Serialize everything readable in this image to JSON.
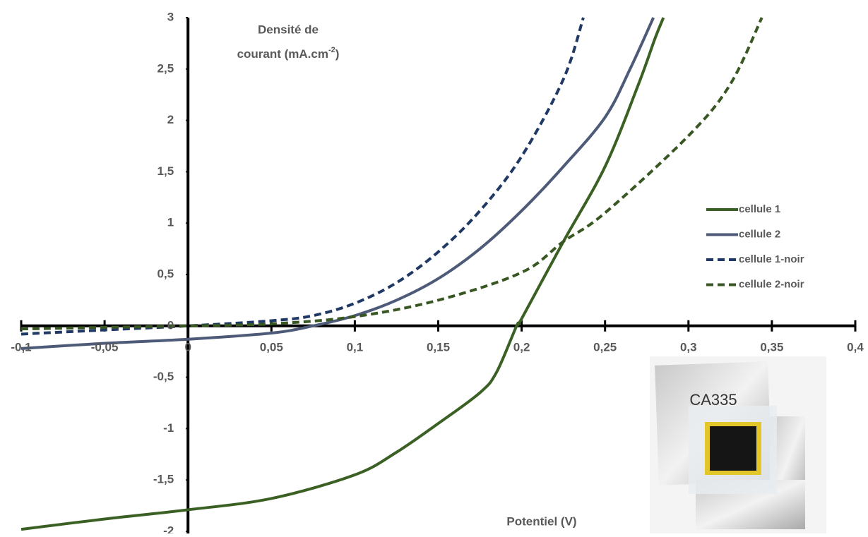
{
  "chart_data": {
    "type": "line",
    "y_label": {
      "line1": "Densité de",
      "line2": "courant (mA.cm",
      "sup": "-2",
      "end": ")"
    },
    "x_label": "Potentiel (V)",
    "xlim": [
      -0.1,
      0.4
    ],
    "ylim": [
      -2,
      3
    ],
    "xticks": [
      {
        "value": -0.1,
        "label": "-0,1"
      },
      {
        "value": -0.05,
        "label": "-0,05"
      },
      0,
      {
        "value": 0.05,
        "label": "0,05"
      },
      {
        "value": 0.1,
        "label": "0,1"
      },
      {
        "value": 0.15,
        "label": "0,15"
      },
      {
        "value": 0.2,
        "label": "0,2"
      },
      {
        "value": 0.25,
        "label": "0,25"
      },
      {
        "value": 0.3,
        "label": "0,3"
      },
      {
        "value": 0.35,
        "label": "0,35"
      },
      {
        "value": 0.4,
        "label": "0,4"
      }
    ],
    "yticks": [
      -2,
      {
        "value": -1.5,
        "label": "-1,5"
      },
      -1,
      {
        "value": -0.5,
        "label": "-0,5"
      },
      0,
      {
        "value": 0.5,
        "label": "0,5"
      },
      1,
      {
        "value": 1.5,
        "label": "1,5"
      },
      2,
      {
        "value": 2.5,
        "label": "2,5"
      },
      3
    ],
    "grid": false,
    "legend": "right",
    "series": [
      {
        "name": "cellule 1",
        "color": "#3b6023",
        "dash": false,
        "x": [
          -0.1,
          -0.05,
          0,
          0.05,
          0.1,
          0.125,
          0.15,
          0.175,
          0.185,
          0.197,
          0.2,
          0.225,
          0.25,
          0.27,
          0.28,
          0.285
        ],
        "values": [
          -1.98,
          -1.88,
          -1.79,
          -1.68,
          -1.45,
          -1.23,
          -0.95,
          -0.65,
          -0.45,
          0,
          0.07,
          0.82,
          1.55,
          2.35,
          2.8,
          3
        ]
      },
      {
        "name": "cellule 2",
        "color": "#4d5a78",
        "dash": false,
        "x": [
          -0.1,
          -0.05,
          0,
          0.05,
          0.075,
          0.1,
          0.125,
          0.15,
          0.175,
          0.2,
          0.225,
          0.25,
          0.265,
          0.279
        ],
        "values": [
          -0.22,
          -0.17,
          -0.13,
          -0.07,
          0,
          0.1,
          0.25,
          0.46,
          0.75,
          1.12,
          1.55,
          2.03,
          2.5,
          3
        ]
      },
      {
        "name": "cellule 1-noir",
        "color": "#1f3864",
        "dash": true,
        "x": [
          -0.1,
          -0.05,
          0,
          0.05,
          0.075,
          0.1,
          0.125,
          0.15,
          0.175,
          0.2,
          0.225,
          0.237
        ],
        "values": [
          -0.08,
          -0.04,
          0,
          0.05,
          0.1,
          0.22,
          0.42,
          0.72,
          1.12,
          1.65,
          2.4,
          3
        ]
      },
      {
        "name": "cellule 2-noir",
        "color": "#385723",
        "dash": true,
        "x": [
          -0.1,
          -0.05,
          0,
          0.05,
          0.1,
          0.15,
          0.2,
          0.225,
          0.25,
          0.3,
          0.325,
          0.344
        ],
        "values": [
          -0.03,
          -0.015,
          0,
          0.02,
          0.09,
          0.25,
          0.52,
          0.82,
          1.1,
          1.85,
          2.35,
          3
        ]
      }
    ]
  },
  "inset": {
    "label": "CA335"
  }
}
